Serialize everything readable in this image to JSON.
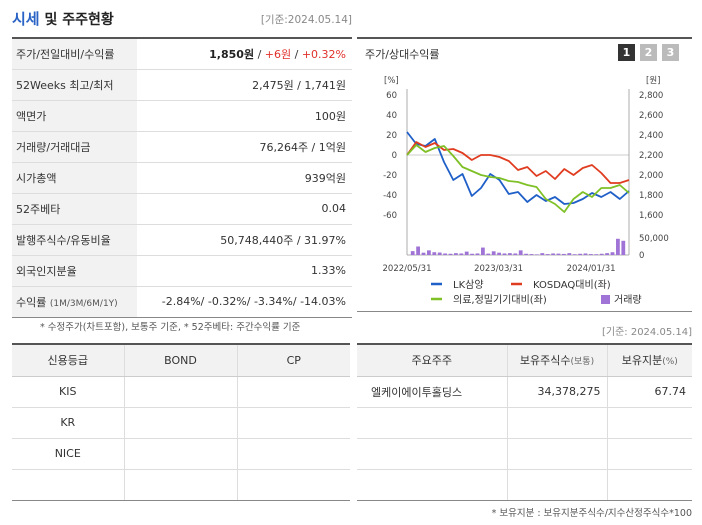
{
  "header": {
    "title_main": "시세",
    "title_rest": " 및 주주현황",
    "date": "[기준:2024.05.14]"
  },
  "quote": {
    "price_label": "주가/전일대비/수익률",
    "price": "1,850원",
    "sep1": " / ",
    "change": "+6원",
    "sep2": " / ",
    "change_pct": "+0.32%",
    "w52_label": "52Weeks 최고/최저",
    "w52": "2,475원 / 1,741원",
    "par_label": "액면가",
    "par": "100원",
    "volume_label": "거래량/거래대금",
    "volume": "76,264주 / 1억원",
    "mcap_label": "시가총액",
    "mcap": "939억원",
    "beta_label": "52주베타",
    "beta": "0.04",
    "shares_label": "발행주식수/유동비율",
    "shares": "50,748,440주 / 31.97%",
    "foreign_label": "외국인지분율",
    "foreign": "1.33%",
    "ret_label": "수익률",
    "ret_sub": "(1M/3M/6M/1Y)",
    "ret_values": "-2.84%/ -0.32%/ -3.34%/ -14.03%"
  },
  "note1": "* 수정주가(차트포함), 보통주 기준, * 52주베타: 주간수익률 기준",
  "chart_panel": {
    "title": "주가/상대수익률",
    "tabs": [
      "1",
      "2",
      "3"
    ]
  },
  "chart_data": {
    "type": "line",
    "left_axis_unit": "[%]",
    "right_axis_unit": "[원]",
    "left_ticks": [
      "60",
      "40",
      "20",
      "0",
      "-20",
      "-40",
      "-60"
    ],
    "right_ticks": [
      "2,800",
      "2,600",
      "2,400",
      "2,200",
      "2,000",
      "1,800",
      "1,600"
    ],
    "vol_ticks": [
      "50,000",
      "0"
    ],
    "x_labels": [
      "2022/05/31",
      "2023/03/31",
      "2024/01/31"
    ],
    "x_label_index": [
      0,
      9.9,
      19.9
    ],
    "ylim_left": [
      -60,
      60
    ],
    "ylim_right": [
      1600,
      2800
    ],
    "series": [
      {
        "name": "LK삼양",
        "axis": "right",
        "color": "#1f5fc8",
        "values": [
          2430,
          2310,
          2290,
          2360,
          2130,
          1950,
          2010,
          1790,
          1870,
          2010,
          1950,
          1810,
          1830,
          1730,
          1800,
          1740,
          1780,
          1710,
          1720,
          1760,
          1820,
          1780,
          1830,
          1760,
          1840
        ]
      },
      {
        "name": "KOSDAQ대비(좌)",
        "axis": "left",
        "color": "#e03c20",
        "values": [
          0,
          13,
          8,
          12,
          5,
          6,
          2,
          -5,
          0,
          0,
          -2,
          -6,
          -15,
          -12,
          -21,
          -16,
          -24,
          -14,
          -20,
          -13,
          -10,
          -18,
          -28,
          -28,
          -25
        ]
      },
      {
        "name": "의료,정밀기기대비(좌)",
        "axis": "left",
        "color": "#7ec025",
        "values": [
          0,
          10,
          3,
          7,
          9,
          -1,
          -12,
          -16,
          -20,
          -22,
          -23,
          -26,
          -27,
          -30,
          -32,
          -44,
          -49,
          -57,
          -44,
          -37,
          -42,
          -33,
          -33,
          -30,
          -38
        ]
      }
    ],
    "volume": {
      "name": "거래량",
      "color": "#9f74d6",
      "values": [
        25000,
        55000,
        15000,
        30000,
        18000,
        16000,
        10000,
        8000,
        12000,
        10000,
        22000,
        8000,
        10000,
        48000,
        9000,
        24000,
        15000,
        10000,
        12000,
        10000,
        30000,
        8000,
        6000,
        4000,
        12000,
        6000,
        10000,
        9000,
        7000,
        12000,
        5000,
        8000,
        10000,
        6000,
        5000,
        8000,
        12000,
        18000,
        105000,
        92000
      ]
    }
  },
  "date2": "[기준: 2024.05.14]",
  "credit": {
    "headers": [
      "신용등급",
      "BOND",
      "CP"
    ],
    "rows": [
      [
        "KIS",
        "",
        ""
      ],
      [
        "KR",
        "",
        ""
      ],
      [
        "NICE",
        "",
        ""
      ],
      [
        "",
        "",
        ""
      ]
    ]
  },
  "holders": {
    "h1": "주요주주",
    "h2": "보유주식수",
    "h2u": "(보통)",
    "h3": "보유지분",
    "h3u": "(%)",
    "rows": [
      [
        "엘케이에이투홀딩스",
        "34,378,275",
        "67.74"
      ],
      [
        "",
        "",
        ""
      ],
      [
        "",
        "",
        ""
      ],
      [
        "",
        "",
        ""
      ]
    ]
  },
  "note2": "* 보유지분 : 보유지분주식수/지수산정주식수*100"
}
